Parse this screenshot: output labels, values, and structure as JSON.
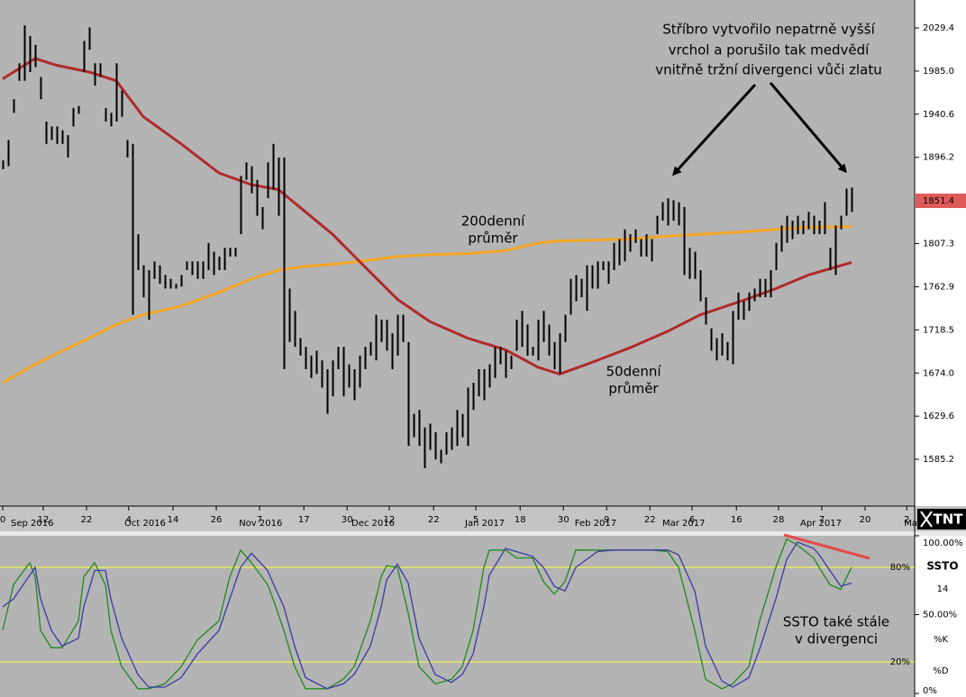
{
  "chart_data": [
    {
      "type": "ohlc",
      "xlim": [
        -0.5,
        168.5
      ],
      "ylim": [
        1537,
        2058.2
      ],
      "yticks": [
        2029.4,
        {
          "value": 1985,
          "label": "1985.0"
        },
        1940.6,
        1896.2,
        1807.3,
        1762.9,
        1718.5,
        {
          "value": 1674,
          "label": "1674.0"
        },
        1629.6,
        1585.2
      ],
      "last_price": 1851.4,
      "last_price_color": "#e05a5a",
      "bar_color": "#000000",
      "high": [
        1893,
        1914,
        1956,
        1993,
        2032,
        2021,
        2012,
        1979,
        1933,
        1928,
        1928,
        1924,
        1919,
        1947,
        1949,
        2016,
        2030,
        1993,
        1993,
        1947,
        1942,
        1993,
        1965,
        1914,
        1910,
        1817,
        1785,
        1780,
        1789,
        1785,
        1775,
        1771,
        1766,
        1775,
        1789,
        1789,
        1789,
        1789,
        1808,
        1799,
        1794,
        1803,
        1803,
        1803,
        1877,
        1891,
        1887,
        1873,
        1845,
        1891,
        1910,
        1896,
        1896,
        1761,
        1738,
        1710,
        1701,
        1692,
        1697,
        1687,
        1678,
        1687,
        1701,
        1701,
        1683,
        1678,
        1692,
        1701,
        1706,
        1734,
        1729,
        1729,
        1715,
        1734,
        1734,
        1706,
        1632,
        1636,
        1618,
        1622,
        1613,
        1595,
        1613,
        1618,
        1636,
        1632,
        1659,
        1664,
        1678,
        1678,
        1683,
        1701,
        1701,
        1697,
        1692,
        1729,
        1738,
        1724,
        1701,
        1729,
        1738,
        1724,
        1706,
        1715,
        1734,
        1771,
        1775,
        1771,
        1785,
        1785,
        1789,
        1789,
        1789,
        1808,
        1812,
        1822,
        1817,
        1822,
        1812,
        1817,
        1812,
        1836,
        1850,
        1854,
        1852,
        1850,
        1845,
        1803,
        1799,
        1780,
        1752,
        1720,
        1710,
        1715,
        1706,
        1738,
        1757,
        1748,
        1757,
        1761,
        1771,
        1771,
        1780,
        1808,
        1826,
        1836,
        1831,
        1836,
        1831,
        1840,
        1836,
        1831,
        1850,
        1803,
        1826,
        1836,
        1864,
        1865
      ],
      "low": [
        1884,
        1887,
        1942,
        1975,
        1975,
        1984,
        1989,
        1956,
        1910,
        1914,
        1910,
        1910,
        1896,
        1928,
        1941,
        1984,
        2007,
        1970,
        1979,
        1933,
        1928,
        1933,
        1938,
        1896,
        1734,
        1780,
        1752,
        1729,
        1771,
        1766,
        1761,
        1761,
        1761,
        1763,
        1780,
        1775,
        1771,
        1771,
        1780,
        1775,
        1780,
        1780,
        1794,
        1794,
        1817,
        1873,
        1859,
        1836,
        1822,
        1854,
        1863,
        1836,
        1678,
        1706,
        1701,
        1692,
        1678,
        1669,
        1673,
        1659,
        1632,
        1650,
        1678,
        1650,
        1659,
        1646,
        1659,
        1678,
        1692,
        1687,
        1706,
        1697,
        1678,
        1692,
        1706,
        1599,
        1608,
        1599,
        1576,
        1595,
        1585,
        1581,
        1590,
        1595,
        1599,
        1608,
        1599,
        1636,
        1650,
        1646,
        1659,
        1669,
        1683,
        1669,
        1678,
        1697,
        1701,
        1692,
        1692,
        1687,
        1706,
        1692,
        1678,
        1673,
        1706,
        1734,
        1748,
        1752,
        1738,
        1761,
        1761,
        1780,
        1766,
        1780,
        1785,
        1789,
        1799,
        1808,
        1794,
        1794,
        1789,
        1817,
        1831,
        1826,
        1831,
        1826,
        1775,
        1771,
        1771,
        1748,
        1724,
        1697,
        1687,
        1692,
        1687,
        1683,
        1729,
        1729,
        1738,
        1748,
        1752,
        1752,
        1752,
        1780,
        1799,
        1808,
        1812,
        1817,
        1817,
        1822,
        1817,
        1817,
        1817,
        1780,
        1775,
        1822,
        1836,
        1840
      ],
      "xticks": [
        {
          "value": 0,
          "label": "0"
        },
        {
          "value": 7.5,
          "label": "12"
        },
        {
          "value": 15.5,
          "label": "22"
        },
        {
          "value": 23.3,
          "label": "4"
        },
        {
          "value": 31.5,
          "label": "14"
        },
        {
          "value": 39.5,
          "label": "26"
        },
        {
          "value": 47.5,
          "label": "7"
        },
        {
          "value": 55.7,
          "label": "17"
        },
        {
          "value": 63.7,
          "label": "30"
        },
        {
          "value": 71.5,
          "label": "12"
        },
        {
          "value": 79.7,
          "label": "22"
        },
        {
          "value": 87.5,
          "label": "5"
        },
        {
          "value": 95.7,
          "label": "18"
        },
        {
          "value": 103.7,
          "label": "30"
        },
        {
          "value": 111.7,
          "label": "9"
        },
        {
          "value": 119.7,
          "label": "22"
        },
        {
          "value": 127.5,
          "label": "6"
        },
        {
          "value": 135.7,
          "label": "16"
        },
        {
          "value": 143.5,
          "label": "28"
        },
        {
          "value": 151.5,
          "label": "7"
        },
        {
          "value": 159.5,
          "label": "20"
        },
        {
          "value": 167.2,
          "label": "2"
        }
      ],
      "month_labels": [
        {
          "value": 1.5,
          "label": "Sep 2016"
        },
        {
          "value": 22.5,
          "label": "Oct 2016"
        },
        {
          "value": 43.7,
          "label": "Nov 2016"
        },
        {
          "value": 64.5,
          "label": "Dec 2016"
        },
        {
          "value": 85.5,
          "label": "Jan 2017"
        },
        {
          "value": 122,
          "label": "Mar 2017"
        },
        {
          "value": 105.8,
          "label": "Feb 2017"
        },
        {
          "value": 147.5,
          "label": "Apr 2017"
        },
        {
          "value": 166.7,
          "label": "Ma"
        }
      ],
      "series": [
        {
          "color": "#f5a623",
          "x": [
            0,
            6,
            10,
            16,
            21,
            26,
            33,
            40,
            46,
            51,
            56,
            61,
            66,
            73,
            79,
            86,
            93,
            99,
            103,
            109,
            116,
            123,
            129,
            136,
            143,
            149,
            157
          ],
          "values": [
            1664,
            1683,
            1694,
            1710,
            1724,
            1734,
            1743,
            1757,
            1771,
            1780,
            1784,
            1786,
            1789,
            1794,
            1796,
            1797,
            1800,
            1808,
            1810,
            1811,
            1812,
            1815,
            1817,
            1819,
            1822,
            1824,
            1825
          ]
        },
        {
          "color": "#b22a2a",
          "x": [
            0,
            6,
            10,
            16,
            21,
            26,
            33,
            40,
            46,
            51,
            56,
            61,
            66,
            73,
            79,
            86,
            93,
            99,
            103,
            109,
            116,
            123,
            129,
            136,
            143,
            149,
            157
          ],
          "values": [
            1977,
            1998,
            1991,
            1984,
            1975,
            1938,
            1910,
            1880,
            1868,
            1863,
            1840,
            1817,
            1789,
            1750,
            1727,
            1710,
            1698,
            1680,
            1673,
            1685,
            1700,
            1717,
            1734,
            1747,
            1761,
            1775,
            1788
          ]
        }
      ],
      "annotations": [
        [
          "Stříbro vytvořilo nepatrně vyšší",
          "vrchol a porušilo tak medvědí",
          "vnitřně tržní divergenci vůči zlatu"
        ],
        [
          "200denní",
          "průměr"
        ],
        [
          "50denní",
          "průměr"
        ]
      ],
      "logo": "TNT"
    },
    {
      "type": "line",
      "title": "SSTO",
      "period": 14,
      "xlim": [
        -0.5,
        168.5
      ],
      "ylim": [
        0,
        100
      ],
      "yticks": [
        {
          "value": 100,
          "label": "100.00%"
        },
        {
          "value": 50,
          "label": "50.00%"
        },
        {
          "value": 0,
          "label": "0%"
        }
      ],
      "levels": [
        {
          "value": 80,
          "label": "80%"
        },
        {
          "value": 20,
          "label": "20%"
        }
      ],
      "level_color": "#ffff33",
      "series": [
        {
          "name": "%K",
          "color": "#1f8a1f",
          "x": [
            0,
            2,
            5,
            6,
            7,
            9,
            11,
            14,
            15,
            17,
            19,
            20,
            22,
            25,
            27,
            30,
            33,
            36,
            40,
            42,
            44,
            46,
            49,
            50,
            52,
            54,
            56,
            60,
            63,
            65,
            68,
            70,
            71,
            73,
            75,
            77,
            80,
            83,
            85,
            87,
            89,
            90,
            93,
            95,
            98,
            100,
            102,
            104,
            106,
            110,
            113,
            116,
            120,
            123,
            125,
            128,
            130,
            133,
            135,
            138,
            140,
            143,
            145,
            147,
            150,
            151,
            153,
            155,
            157
          ],
          "values": [
            40,
            69,
            83,
            74,
            40,
            29,
            29,
            46,
            74,
            83,
            69,
            40,
            17,
            3,
            3,
            6,
            17,
            34,
            46,
            74,
            91,
            83,
            69,
            60,
            40,
            17,
            3,
            3,
            9,
            17,
            46,
            74,
            81,
            80,
            51,
            17,
            6,
            9,
            17,
            40,
            80,
            91,
            91,
            86,
            86,
            71,
            63,
            71,
            91,
            91,
            91,
            91,
            91,
            90,
            80,
            40,
            9,
            3,
            6,
            17,
            46,
            80,
            98,
            94,
            86,
            80,
            69,
            66,
            80
          ]
        },
        {
          "name": "%D",
          "color": "#3a3aa8",
          "x": [
            0,
            2,
            5,
            6,
            7,
            9,
            11,
            14,
            15,
            17,
            19,
            20,
            22,
            25,
            27,
            30,
            33,
            36,
            40,
            42,
            44,
            46,
            49,
            50,
            52,
            54,
            56,
            60,
            63,
            65,
            68,
            70,
            71,
            73,
            75,
            77,
            80,
            83,
            85,
            87,
            89,
            90,
            93,
            95,
            98,
            100,
            102,
            104,
            106,
            110,
            113,
            116,
            120,
            123,
            125,
            128,
            130,
            133,
            135,
            138,
            140,
            143,
            145,
            147,
            150,
            151,
            153,
            155,
            157
          ],
          "values": [
            55,
            60,
            75,
            80,
            60,
            40,
            30,
            35,
            55,
            78,
            78,
            60,
            35,
            12,
            4,
            4,
            10,
            25,
            40,
            60,
            80,
            89,
            78,
            70,
            55,
            30,
            10,
            3,
            6,
            12,
            30,
            55,
            72,
            82,
            70,
            35,
            12,
            7,
            12,
            25,
            55,
            75,
            92,
            90,
            87,
            80,
            68,
            65,
            80,
            90,
            91,
            91,
            91,
            91,
            88,
            65,
            30,
            8,
            4,
            10,
            28,
            60,
            85,
            96,
            92,
            88,
            78,
            68,
            70
          ]
        }
      ],
      "annotations": [
        [
          "SSTO také stále",
          "v divergenci"
        ]
      ]
    }
  ]
}
